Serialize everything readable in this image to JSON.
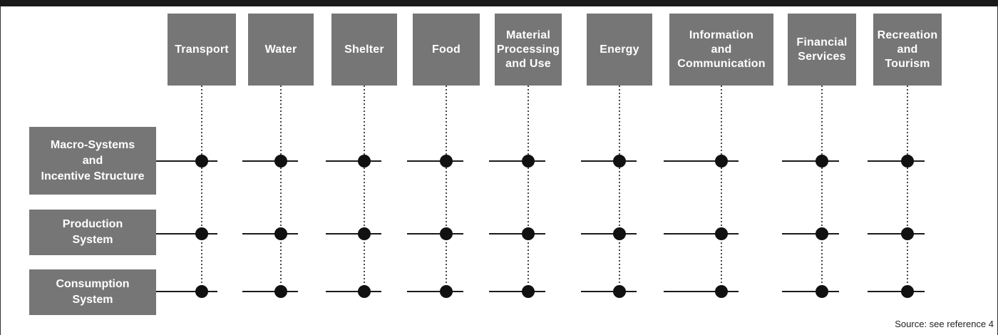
{
  "columns": [
    {
      "label": "Transport"
    },
    {
      "label": "Water"
    },
    {
      "label": "Shelter"
    },
    {
      "label": "Food"
    },
    {
      "label": "Material\nProcessing\nand Use"
    },
    {
      "label": "Energy"
    },
    {
      "label": "Information\nand\nCommunication"
    },
    {
      "label": "Financial\nServices"
    },
    {
      "label": "Recreation\nand\nTourism"
    }
  ],
  "rows": [
    {
      "label": "Macro-Systems\nand\nIncentive Structure"
    },
    {
      "label": "Production\nSystem"
    },
    {
      "label": "Consumption\nSystem"
    }
  ],
  "source": "Source: see reference 4",
  "colors": {
    "box": "#767676",
    "line": "#1a1a1a",
    "node": "#111111",
    "topbar": "#1a1a1a"
  }
}
